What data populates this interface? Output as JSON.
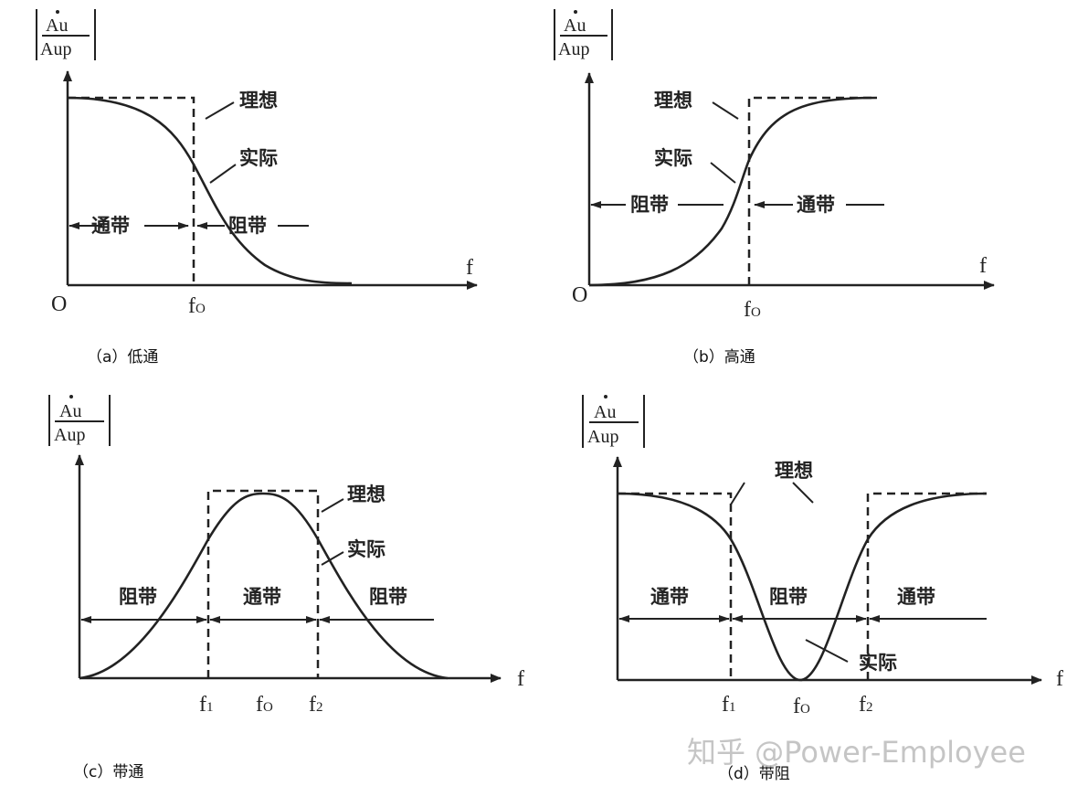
{
  "y_axis_label": {
    "numerator": "Au",
    "denominator": "Aup"
  },
  "x_axis_label": "f",
  "origin_label": "O",
  "ideal_label": "理想",
  "actual_label": "实际",
  "passband_label": "通带",
  "stopband_label": "阻带",
  "ticks": {
    "f0": "f",
    "f0_sub": "O",
    "f1": "f",
    "f1_sub": "1",
    "f2": "f",
    "f2_sub": "2"
  },
  "panels": [
    {
      "id": "a",
      "caption": "（a）低通"
    },
    {
      "id": "b",
      "caption": "（b）高通"
    },
    {
      "id": "c",
      "caption": "（c）带通"
    },
    {
      "id": "d",
      "caption": "（d）带阻"
    }
  ],
  "watermark": "知乎 @Power-Employee"
}
